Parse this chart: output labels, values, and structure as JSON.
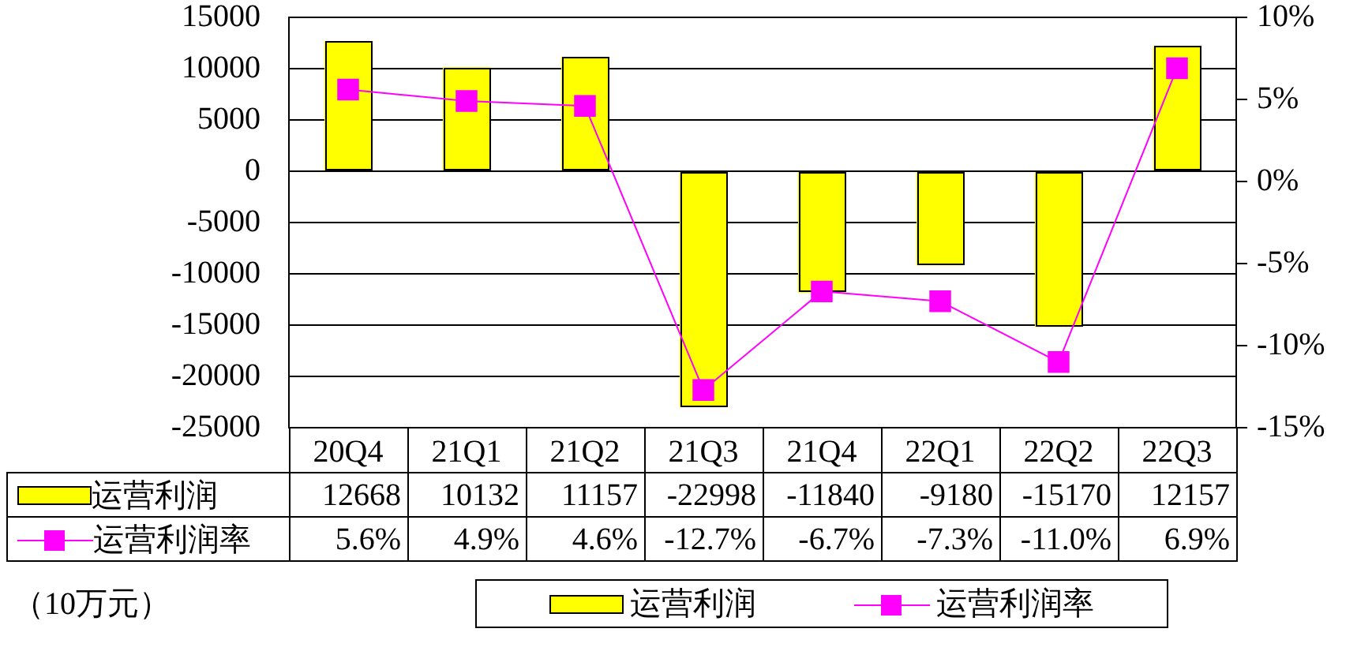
{
  "chart_data": {
    "type": "bar",
    "categories": [
      "20Q4",
      "21Q1",
      "21Q2",
      "21Q3",
      "21Q4",
      "22Q1",
      "22Q2",
      "22Q3"
    ],
    "series": [
      {
        "name": "运营利润",
        "color": "#ffff00",
        "values": [
          12668,
          10132,
          11157,
          -22998,
          -11840,
          -9180,
          -15170,
          12157
        ],
        "value_labels": [
          "12668",
          "10132",
          "11157",
          "-22998",
          "-11840",
          "-9180",
          "-15170",
          "12157"
        ]
      },
      {
        "name": "运营利润率",
        "type": "line",
        "axis": "y2",
        "color": "#ff00ff",
        "values": [
          5.6,
          4.9,
          4.6,
          -12.7,
          -6.7,
          -7.3,
          -11.0,
          6.9
        ],
        "value_labels": [
          "5.6%",
          "4.9%",
          "4.6%",
          "-12.7%",
          "-6.7%",
          "-7.3%",
          "-11.0%",
          "6.9%"
        ]
      }
    ],
    "ylim": [
      -25000,
      15000
    ],
    "yticks": [
      -25000,
      -20000,
      -15000,
      -10000,
      -5000,
      0,
      5000,
      10000,
      15000
    ],
    "y2lim": [
      -15,
      10
    ],
    "y2ticks": [
      {
        "value": -15,
        "label": "-15%"
      },
      {
        "value": -10,
        "label": "-10%"
      },
      {
        "value": -5,
        "label": "-5%"
      },
      {
        "value": 0,
        "label": "0%"
      },
      {
        "value": 5,
        "label": "5%"
      },
      {
        "value": 10,
        "label": "10%"
      }
    ],
    "grid": "y",
    "legend": "bottom",
    "marker": "square",
    "annotations": [
      "（10万元）"
    ]
  }
}
